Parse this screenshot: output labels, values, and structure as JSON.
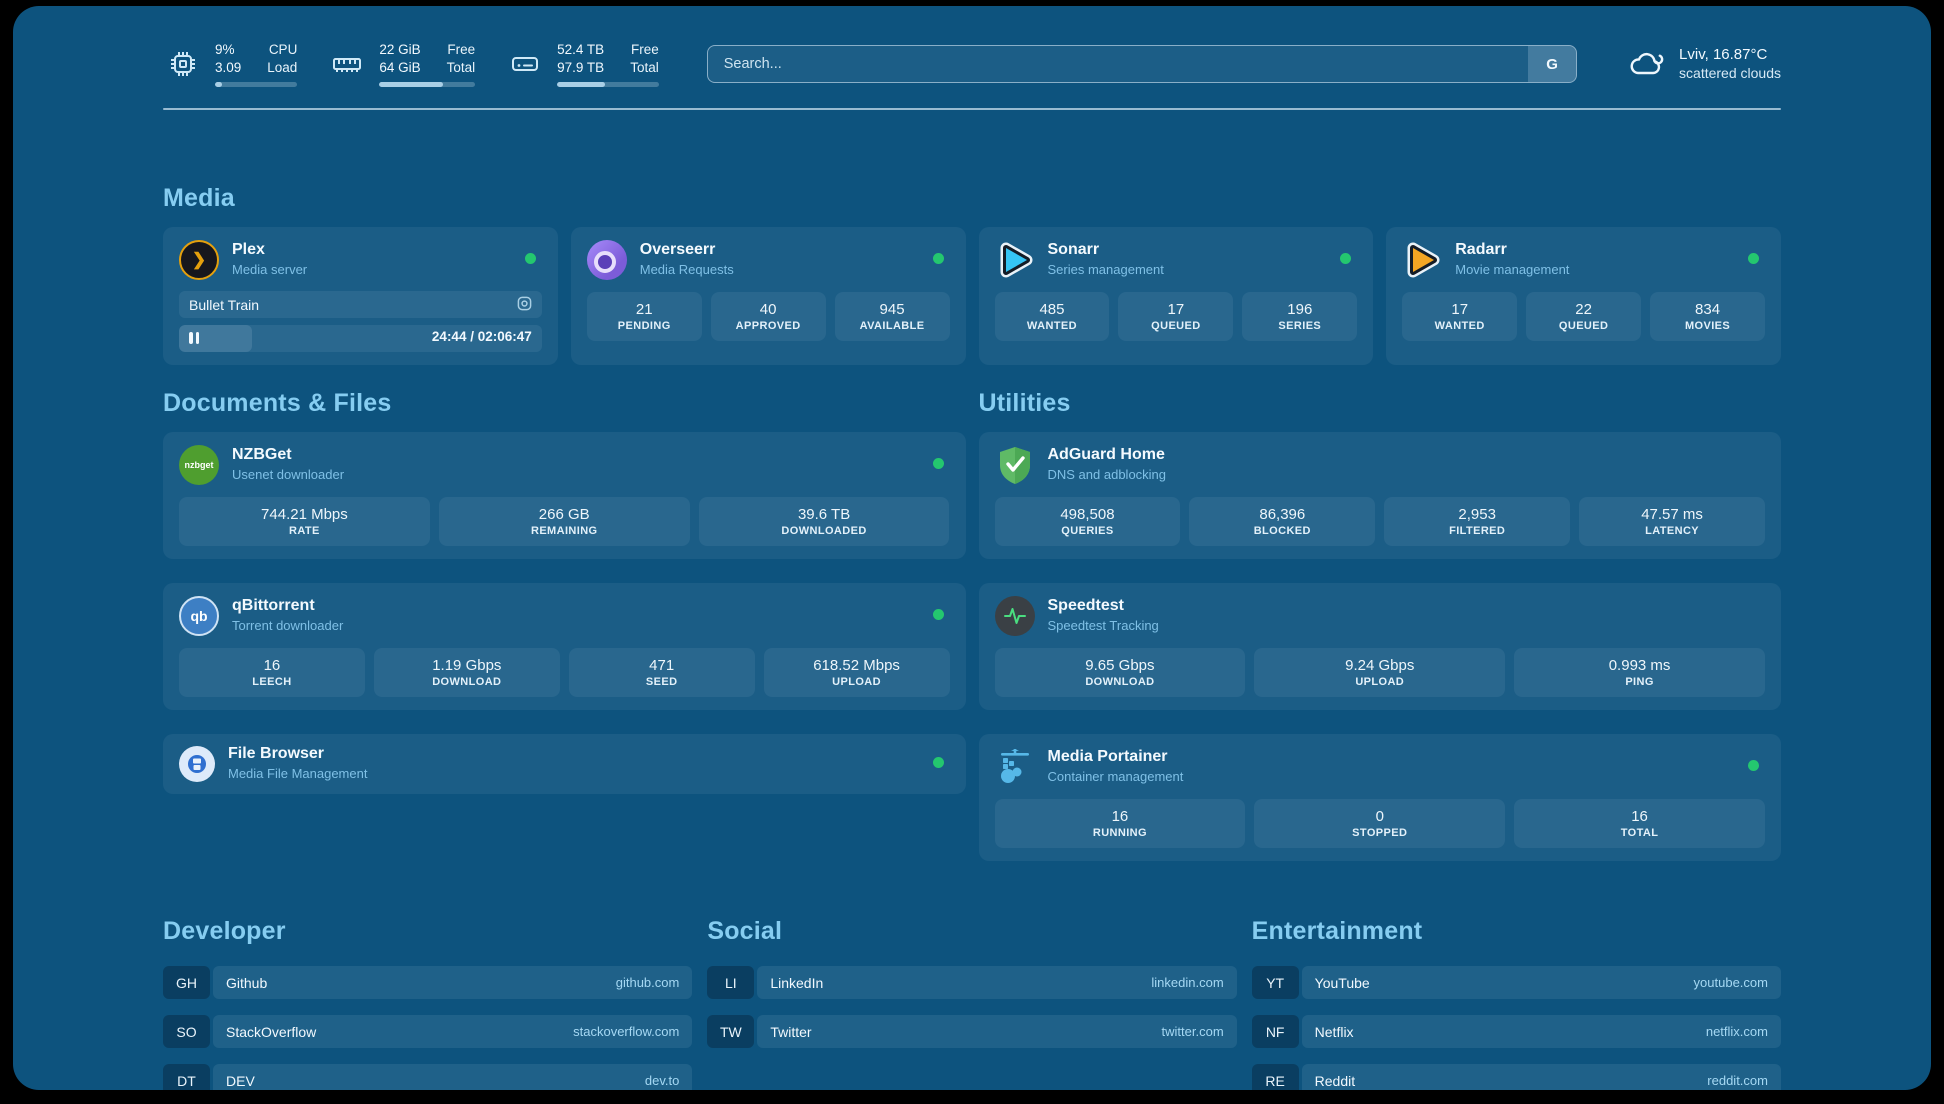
{
  "topbar": {
    "cpu": {
      "value": "9%",
      "sub": "3.09",
      "label": "CPU",
      "sublabel": "Load",
      "progress_pct": 9
    },
    "ram": {
      "value": "22 GiB",
      "sub": "64 GiB",
      "label": "Free",
      "sublabel": "Total",
      "progress_pct": 66
    },
    "disk": {
      "value": "52.4 TB",
      "sub": "97.9 TB",
      "label": "Free",
      "sublabel": "Total",
      "progress_pct": 47
    },
    "search": {
      "placeholder": "Search...",
      "engine_label": "G"
    },
    "weather": {
      "title": "Lviv, 16.87°C",
      "subtitle": "scattered clouds"
    }
  },
  "media": {
    "header": "Media",
    "plex": {
      "title": "Plex",
      "subtitle": "Media server",
      "now_playing": "Bullet Train",
      "time": "24:44 / 02:06:47",
      "progress_pct": 20
    },
    "overseerr": {
      "title": "Overseerr",
      "subtitle": "Media Requests",
      "stats": [
        {
          "value": "21",
          "label": "PENDING"
        },
        {
          "value": "40",
          "label": "APPROVED"
        },
        {
          "value": "945",
          "label": "AVAILABLE"
        }
      ]
    },
    "sonarr": {
      "title": "Sonarr",
      "subtitle": "Series management",
      "stats": [
        {
          "value": "485",
          "label": "WANTED"
        },
        {
          "value": "17",
          "label": "QUEUED"
        },
        {
          "value": "196",
          "label": "SERIES"
        }
      ]
    },
    "radarr": {
      "title": "Radarr",
      "subtitle": "Movie management",
      "stats": [
        {
          "value": "17",
          "label": "WANTED"
        },
        {
          "value": "22",
          "label": "QUEUED"
        },
        {
          "value": "834",
          "label": "MOVIES"
        }
      ]
    }
  },
  "documents": {
    "header": "Documents & Files",
    "nzbget": {
      "title": "NZBGet",
      "subtitle": "Usenet downloader",
      "icon_text": "nzbget",
      "stats": [
        {
          "value": "744.21 Mbps",
          "label": "RATE"
        },
        {
          "value": "266 GB",
          "label": "REMAINING"
        },
        {
          "value": "39.6 TB",
          "label": "DOWNLOADED"
        }
      ]
    },
    "qbittorrent": {
      "title": "qBittorrent",
      "subtitle": "Torrent downloader",
      "icon_text": "qb",
      "stats": [
        {
          "value": "16",
          "label": "LEECH"
        },
        {
          "value": "1.19 Gbps",
          "label": "DOWNLOAD"
        },
        {
          "value": "471",
          "label": "SEED"
        },
        {
          "value": "618.52 Mbps",
          "label": "UPLOAD"
        }
      ]
    },
    "filebrowser": {
      "title": "File Browser",
      "subtitle": "Media File Management"
    }
  },
  "utilities": {
    "header": "Utilities",
    "adguard": {
      "title": "AdGuard Home",
      "subtitle": "DNS and adblocking",
      "stats": [
        {
          "value": "498,508",
          "label": "QUERIES"
        },
        {
          "value": "86,396",
          "label": "BLOCKED"
        },
        {
          "value": "2,953",
          "label": "FILTERED"
        },
        {
          "value": "47.57 ms",
          "label": "LATENCY"
        }
      ]
    },
    "speedtest": {
      "title": "Speedtest",
      "subtitle": "Speedtest Tracking",
      "stats": [
        {
          "value": "9.65 Gbps",
          "label": "DOWNLOAD"
        },
        {
          "value": "9.24 Gbps",
          "label": "UPLOAD"
        },
        {
          "value": "0.993 ms",
          "label": "PING"
        }
      ]
    },
    "portainer": {
      "title": "Media Portainer",
      "subtitle": "Container management",
      "stats": [
        {
          "value": "16",
          "label": "RUNNING"
        },
        {
          "value": "0",
          "label": "STOPPED"
        },
        {
          "value": "16",
          "label": "TOTAL"
        }
      ]
    }
  },
  "bookmarks": {
    "developer": {
      "header": "Developer",
      "links": [
        {
          "abbr": "GH",
          "name": "Github",
          "url": "github.com"
        },
        {
          "abbr": "SO",
          "name": "StackOverflow",
          "url": "stackoverflow.com"
        },
        {
          "abbr": "DT",
          "name": "DEV",
          "url": "dev.to"
        }
      ]
    },
    "social": {
      "header": "Social",
      "links": [
        {
          "abbr": "LI",
          "name": "LinkedIn",
          "url": "linkedin.com"
        },
        {
          "abbr": "TW",
          "name": "Twitter",
          "url": "twitter.com"
        }
      ]
    },
    "entertainment": {
      "header": "Entertainment",
      "links": [
        {
          "abbr": "YT",
          "name": "YouTube",
          "url": "youtube.com"
        },
        {
          "abbr": "NF",
          "name": "Netflix",
          "url": "netflix.com"
        },
        {
          "abbr": "RE",
          "name": "Reddit",
          "url": "reddit.com"
        }
      ]
    }
  },
  "colors": {
    "page_bg": "#0d537e",
    "status_online": "#24c76f",
    "header_accent": "#86cdf1"
  }
}
